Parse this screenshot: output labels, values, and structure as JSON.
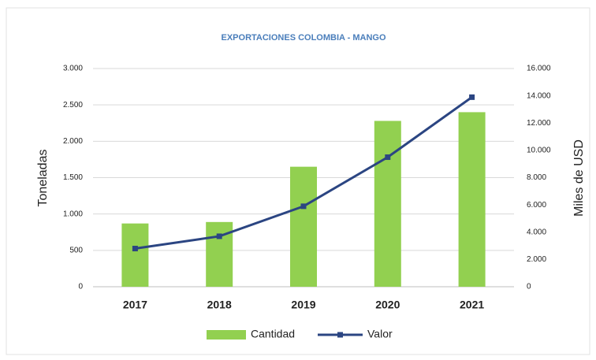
{
  "chart_data": {
    "type": "bar_line",
    "title": "EXPORTACIONES COLOMBIA - MANGO",
    "y_label": "Toneladas",
    "y2_label": "Miles de USD",
    "categories": [
      "2017",
      "2018",
      "2019",
      "2020",
      "2021"
    ],
    "series": [
      {
        "name": "Cantidad",
        "type": "bar",
        "color": "#92d050",
        "values": [
          870,
          890,
          1650,
          2280,
          2400
        ]
      },
      {
        "name": "Valor",
        "type": "line",
        "axis": "y2",
        "color": "#2b4582",
        "values": [
          2800,
          3700,
          5900,
          9500,
          13900
        ]
      }
    ],
    "ylim": [
      0,
      3000
    ],
    "yticks": [
      0,
      500,
      {
        "value": 1000,
        "label": "1.000"
      },
      {
        "value": 1500,
        "label": "1.500"
      },
      {
        "value": 2000,
        "label": "2.000"
      },
      {
        "value": 2500,
        "label": "2.500"
      },
      {
        "value": 3000,
        "label": "3.000"
      }
    ],
    "y2lim": [
      0,
      16000
    ],
    "y2ticks": [
      0,
      {
        "value": 2000,
        "label": "2.000"
      },
      {
        "value": 4000,
        "label": "4.000"
      },
      {
        "value": 6000,
        "label": "6.000"
      },
      {
        "value": 8000,
        "label": "8.000"
      },
      {
        "value": 10000,
        "label": "10.000"
      },
      {
        "value": 12000,
        "label": "12.000"
      },
      {
        "value": 14000,
        "label": "14.000"
      },
      {
        "value": 16000,
        "label": "16.000"
      }
    ],
    "grid": true,
    "legend": "bottom"
  }
}
